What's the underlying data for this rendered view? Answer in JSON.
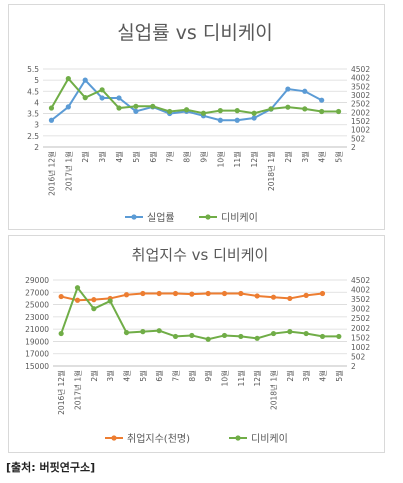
{
  "source_note": "[출처: 버핏연구소]",
  "colors": {
    "blue": "#5b9bd5",
    "green": "#70ad47",
    "orange": "#ed7d31",
    "grid": "#d9d9d9",
    "text": "#595959"
  },
  "x_labels": [
    "2016년 12월",
    "2017년 1월",
    "2월",
    "3월",
    "4월",
    "5월",
    "6월",
    "7월",
    "8월",
    "9월",
    "10월",
    "11월",
    "12월",
    "2018년 1월",
    "2월",
    "3월",
    "4월",
    "5월"
  ],
  "chart_data": [
    {
      "type": "line",
      "title": "실업률 vs 디비케이",
      "ylim": [
        2,
        5.5
      ],
      "yticks": [
        "2",
        "2.5",
        "3",
        "3.5",
        "4",
        "4.5",
        "5",
        "5.5"
      ],
      "y2lim": [
        2,
        4502
      ],
      "y2ticks": [
        "2",
        "502",
        "1002",
        "1502",
        "2002",
        "2502",
        "3002",
        "3502",
        "4002",
        "4502"
      ],
      "legend_position": "bottom",
      "series": [
        {
          "name": "실업률",
          "color": "#5b9bd5",
          "axis": "left",
          "values": [
            3.2,
            3.8,
            5.0,
            4.2,
            4.2,
            3.6,
            3.8,
            3.5,
            3.6,
            3.4,
            3.2,
            3.2,
            3.3,
            3.7,
            4.6,
            4.5,
            4.1,
            null
          ]
        },
        {
          "name": "디비케이",
          "color": "#70ad47",
          "axis": "right",
          "values": [
            2250,
            3950,
            2850,
            3300,
            2250,
            2350,
            2350,
            2050,
            2150,
            1950,
            2100,
            2100,
            1950,
            2200,
            2300,
            2200,
            2050,
            2050
          ]
        }
      ]
    },
    {
      "type": "line",
      "title": "취업지수 vs 디비케이",
      "ylim": [
        15000,
        29000
      ],
      "yticks": [
        "15000",
        "17000",
        "19000",
        "21000",
        "23000",
        "25000",
        "27000",
        "29000"
      ],
      "y2lim": [
        2,
        4502
      ],
      "y2ticks": [
        "2",
        "502",
        "1002",
        "1502",
        "2002",
        "2502",
        "3002",
        "3502",
        "4002",
        "4502"
      ],
      "legend_position": "bottom",
      "series": [
        {
          "name": "취업지수(천명)",
          "color": "#ed7d31",
          "axis": "left",
          "values": [
            26300,
            25700,
            25800,
            26000,
            26600,
            26800,
            26800,
            26800,
            26700,
            26800,
            26800,
            26800,
            26400,
            26200,
            26000,
            26500,
            26800,
            null
          ]
        },
        {
          "name": "디비케이",
          "color": "#70ad47",
          "axis": "right",
          "values": [
            1700,
            4100,
            3000,
            3400,
            1750,
            1800,
            1850,
            1550,
            1600,
            1400,
            1600,
            1550,
            1450,
            1700,
            1800,
            1700,
            1550,
            1550
          ]
        }
      ]
    }
  ]
}
